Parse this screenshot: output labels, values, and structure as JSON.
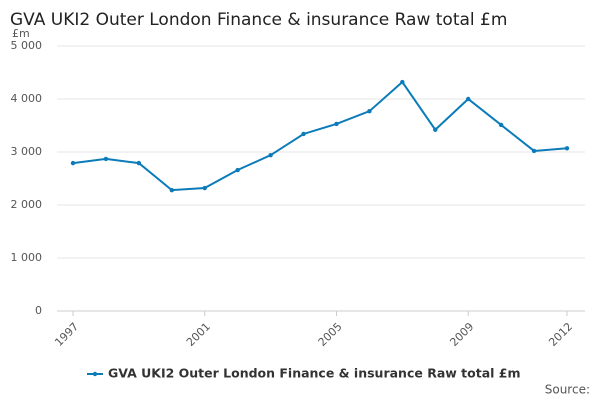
{
  "chart_data": {
    "type": "line",
    "title": "GVA UKI2 Outer London Finance & insurance Raw total £m",
    "y_unit": "£m",
    "source": "Source:",
    "x": [
      1997,
      1998,
      1999,
      2000,
      2001,
      2002,
      2003,
      2004,
      2005,
      2006,
      2007,
      2008,
      2009,
      2010,
      2011,
      2012
    ],
    "series": [
      {
        "name": "GVA UKI2 Outer London Finance & insurance Raw total £m",
        "color": "#0b7bba",
        "values": [
          2790,
          2870,
          2790,
          2280,
          2320,
          2660,
          2940,
          3340,
          3530,
          3770,
          4320,
          3420,
          4000,
          3510,
          3020,
          3070
        ]
      }
    ],
    "xlim": [
      1997,
      2012
    ],
    "xticks": [
      1997,
      2001,
      2005,
      2009,
      2012
    ],
    "ylim": [
      0,
      5000
    ],
    "yticks": [
      0,
      {
        "value": 1000,
        "label": "1 000"
      },
      {
        "value": 2000,
        "label": "2 000"
      },
      {
        "value": 3000,
        "label": "3 000"
      },
      {
        "value": 4000,
        "label": "4 000"
      },
      {
        "value": 5000,
        "label": "5 000"
      }
    ],
    "grid": true,
    "legend": "bottom"
  }
}
